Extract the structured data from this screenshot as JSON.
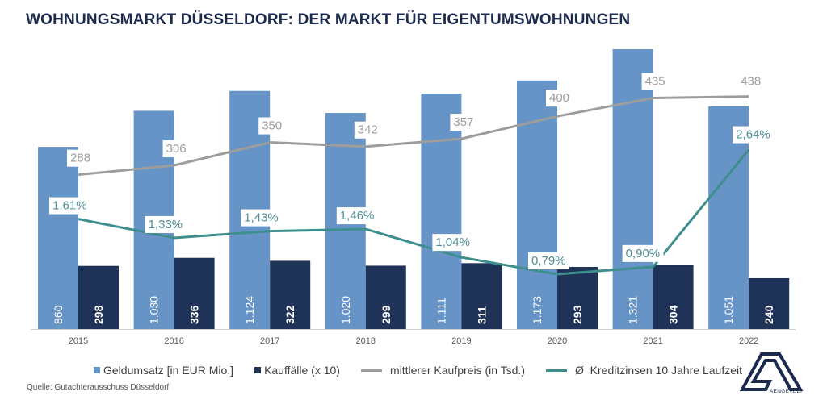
{
  "title": "WOHNUNGSMARKT DÜSSELDORF: DER MARKT FÜR EIGENTUMSWOHNUNGEN",
  "source": "Quelle: Gutachterausschuss Düsseldorf",
  "logo": {
    "icon": "aengevelt-logo-icon",
    "text": "AENGEVELT"
  },
  "colors": {
    "geldumsatz": "#6794c6",
    "kauffaelle": "#1f3258",
    "kaufpreis": "#9d9d9d",
    "kreditzinsen": "#3f8e8e",
    "title": "#1b2a4e"
  },
  "chart_data": {
    "type": "bar",
    "title": "WOHNUNGSMARKT DÜSSELDORF: DER MARKT FÜR EIGENTUMSWOHNUNGEN",
    "xlabel": "",
    "ylabel": "",
    "grid": false,
    "legend_position": "bottom",
    "categories": [
      "2015",
      "2016",
      "2017",
      "2018",
      "2019",
      "2020",
      "2021",
      "2022"
    ],
    "series": [
      {
        "name": "Geldumsatz [in EUR Mio.]",
        "type": "bar",
        "values": [
          860,
          1030,
          1124,
          1020,
          1111,
          1173,
          1321,
          1051
        ],
        "labels": [
          "860",
          "1.030",
          "1.124",
          "1.020",
          "1.111",
          "1.173",
          "1.321",
          "1.051"
        ]
      },
      {
        "name": "Kauffälle (x 10)",
        "type": "bar",
        "values": [
          298,
          336,
          322,
          299,
          311,
          293,
          304,
          240
        ],
        "labels": [
          "298",
          "336",
          "322",
          "299",
          "311",
          "293",
          "304",
          "240"
        ]
      },
      {
        "name": "mittlerer Kaufpreis (in Tsd.)",
        "type": "line",
        "values": [
          288,
          306,
          350,
          342,
          357,
          400,
          435,
          438
        ],
        "labels": [
          "288",
          "306",
          "350",
          "342",
          "357",
          "400",
          "435",
          "438"
        ]
      },
      {
        "name": "Ø  Kreditzinsen 10 Jahre Laufzeit",
        "type": "line",
        "values": [
          1.61,
          1.33,
          1.43,
          1.46,
          1.04,
          0.79,
          0.9,
          2.64
        ],
        "labels": [
          "1,61%",
          "1,33%",
          "1,43%",
          "1,46%",
          "1,04%",
          "0,79%",
          "0,90%",
          "2,64%"
        ]
      }
    ]
  },
  "legend": [
    {
      "label": "Geldumsatz [in EUR Mio.]",
      "marker": "square"
    },
    {
      "label": "Kauffälle (x 10)",
      "marker": "square"
    },
    {
      "label": "mittlerer Kaufpreis (in Tsd.)",
      "marker": "line"
    },
    {
      "label": "Ø  Kreditzinsen 10 Jahre Laufzeit",
      "marker": "line"
    }
  ]
}
